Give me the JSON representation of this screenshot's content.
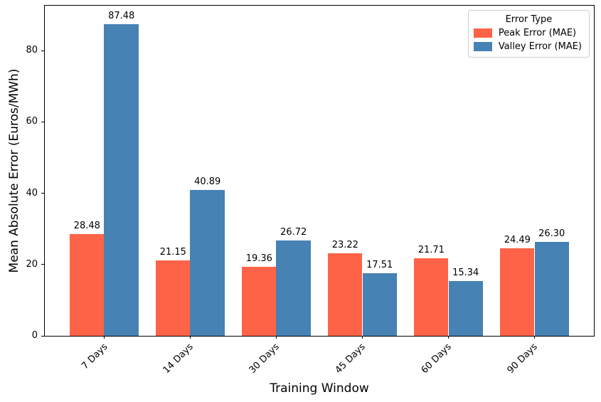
{
  "chart_data": {
    "type": "bar",
    "title": "",
    "xlabel": "Training Window",
    "ylabel": "Mean Absolute Error (Euros/MWh)",
    "categories": [
      "7 Days",
      "14 Days",
      "30 Days",
      "45 Days",
      "60 Days",
      "90 Days"
    ],
    "series": [
      {
        "name": "Peak Error (MAE)",
        "color": "#ff6347",
        "values": [
          28.48,
          21.15,
          19.36,
          23.22,
          21.71,
          24.49
        ]
      },
      {
        "name": "Valley Error (MAE)",
        "color": "#4682b4",
        "values": [
          87.48,
          40.89,
          26.72,
          17.51,
          15.34,
          26.3
        ]
      }
    ],
    "legend": {
      "title": "Error Type",
      "position": "upper right"
    },
    "yticks": [
      0,
      20,
      40,
      60,
      80
    ],
    "ylim": [
      0,
      92.6
    ],
    "xlim": [
      -0.69,
      5.69
    ],
    "bar_width": 0.4,
    "grid": false,
    "value_label_decimals": 2,
    "x_tick_rotation_deg": 45,
    "background_color": "#ffffff",
    "axis_color": "#000000"
  }
}
